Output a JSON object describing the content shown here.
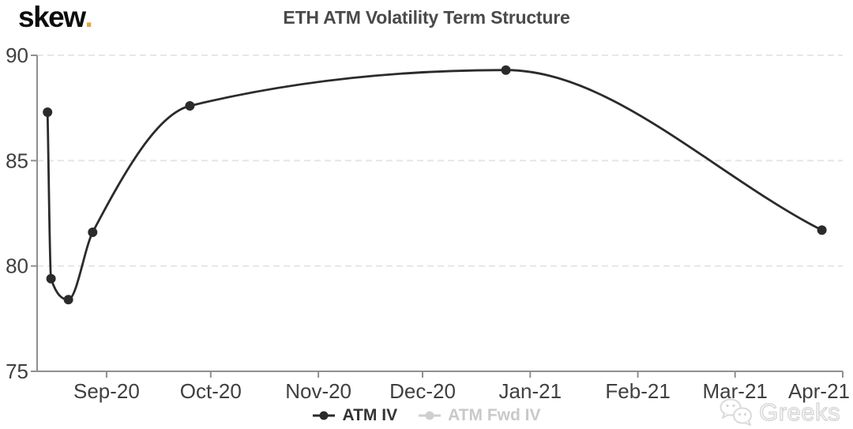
{
  "logo": {
    "text": "skew",
    "dot": "."
  },
  "watermark": {
    "text": "Greeks",
    "icon": "wechat-icon"
  },
  "colors": {
    "accent_gold": "#e2a63d",
    "series_line": "#2b2b2b",
    "legend_disabled": "#c9c9c9",
    "grid": "#e4e4e4",
    "axis": "#8f8f8f",
    "axis_label": "#3f3f3f",
    "title": "#4a4a4a"
  },
  "chart_data": {
    "type": "line",
    "title": "ETH ATM Volatility Term Structure",
    "xlabel": "",
    "ylabel": "",
    "ylim": [
      75,
      90
    ],
    "y_ticks": [
      75,
      80,
      85,
      90
    ],
    "x_domain": [
      "2020-08-12",
      "2021-04-01"
    ],
    "x_ticks": [
      {
        "date": "2020-09-01",
        "label": "Sep-20"
      },
      {
        "date": "2020-10-01",
        "label": "Oct-20"
      },
      {
        "date": "2020-11-01",
        "label": "Nov-20"
      },
      {
        "date": "2020-12-01",
        "label": "Dec-20"
      },
      {
        "date": "2021-01-01",
        "label": "Jan-21"
      },
      {
        "date": "2021-02-01",
        "label": "Feb-21"
      },
      {
        "date": "2021-03-01",
        "label": "Mar-21"
      },
      {
        "date": "2021-04-01",
        "label": "Apr-21"
      }
    ],
    "grid": {
      "horizontal": true,
      "style": "dashed"
    },
    "legend_position": "bottom-center",
    "series": [
      {
        "name": "ATM IV",
        "color": "#2b2b2b",
        "visible": true,
        "marker": "circle",
        "points": [
          {
            "date": "2020-08-15",
            "value": 87.3
          },
          {
            "date": "2020-08-16",
            "value": 79.4
          },
          {
            "date": "2020-08-21",
            "value": 78.4
          },
          {
            "date": "2020-08-28",
            "value": 81.6
          },
          {
            "date": "2020-09-25",
            "value": 87.6
          },
          {
            "date": "2020-12-25",
            "value": 89.3
          },
          {
            "date": "2021-03-26",
            "value": 81.7
          }
        ]
      },
      {
        "name": "ATM Fwd IV",
        "color": "#cfcfcf",
        "visible": false,
        "marker": "circle",
        "points": []
      }
    ]
  }
}
